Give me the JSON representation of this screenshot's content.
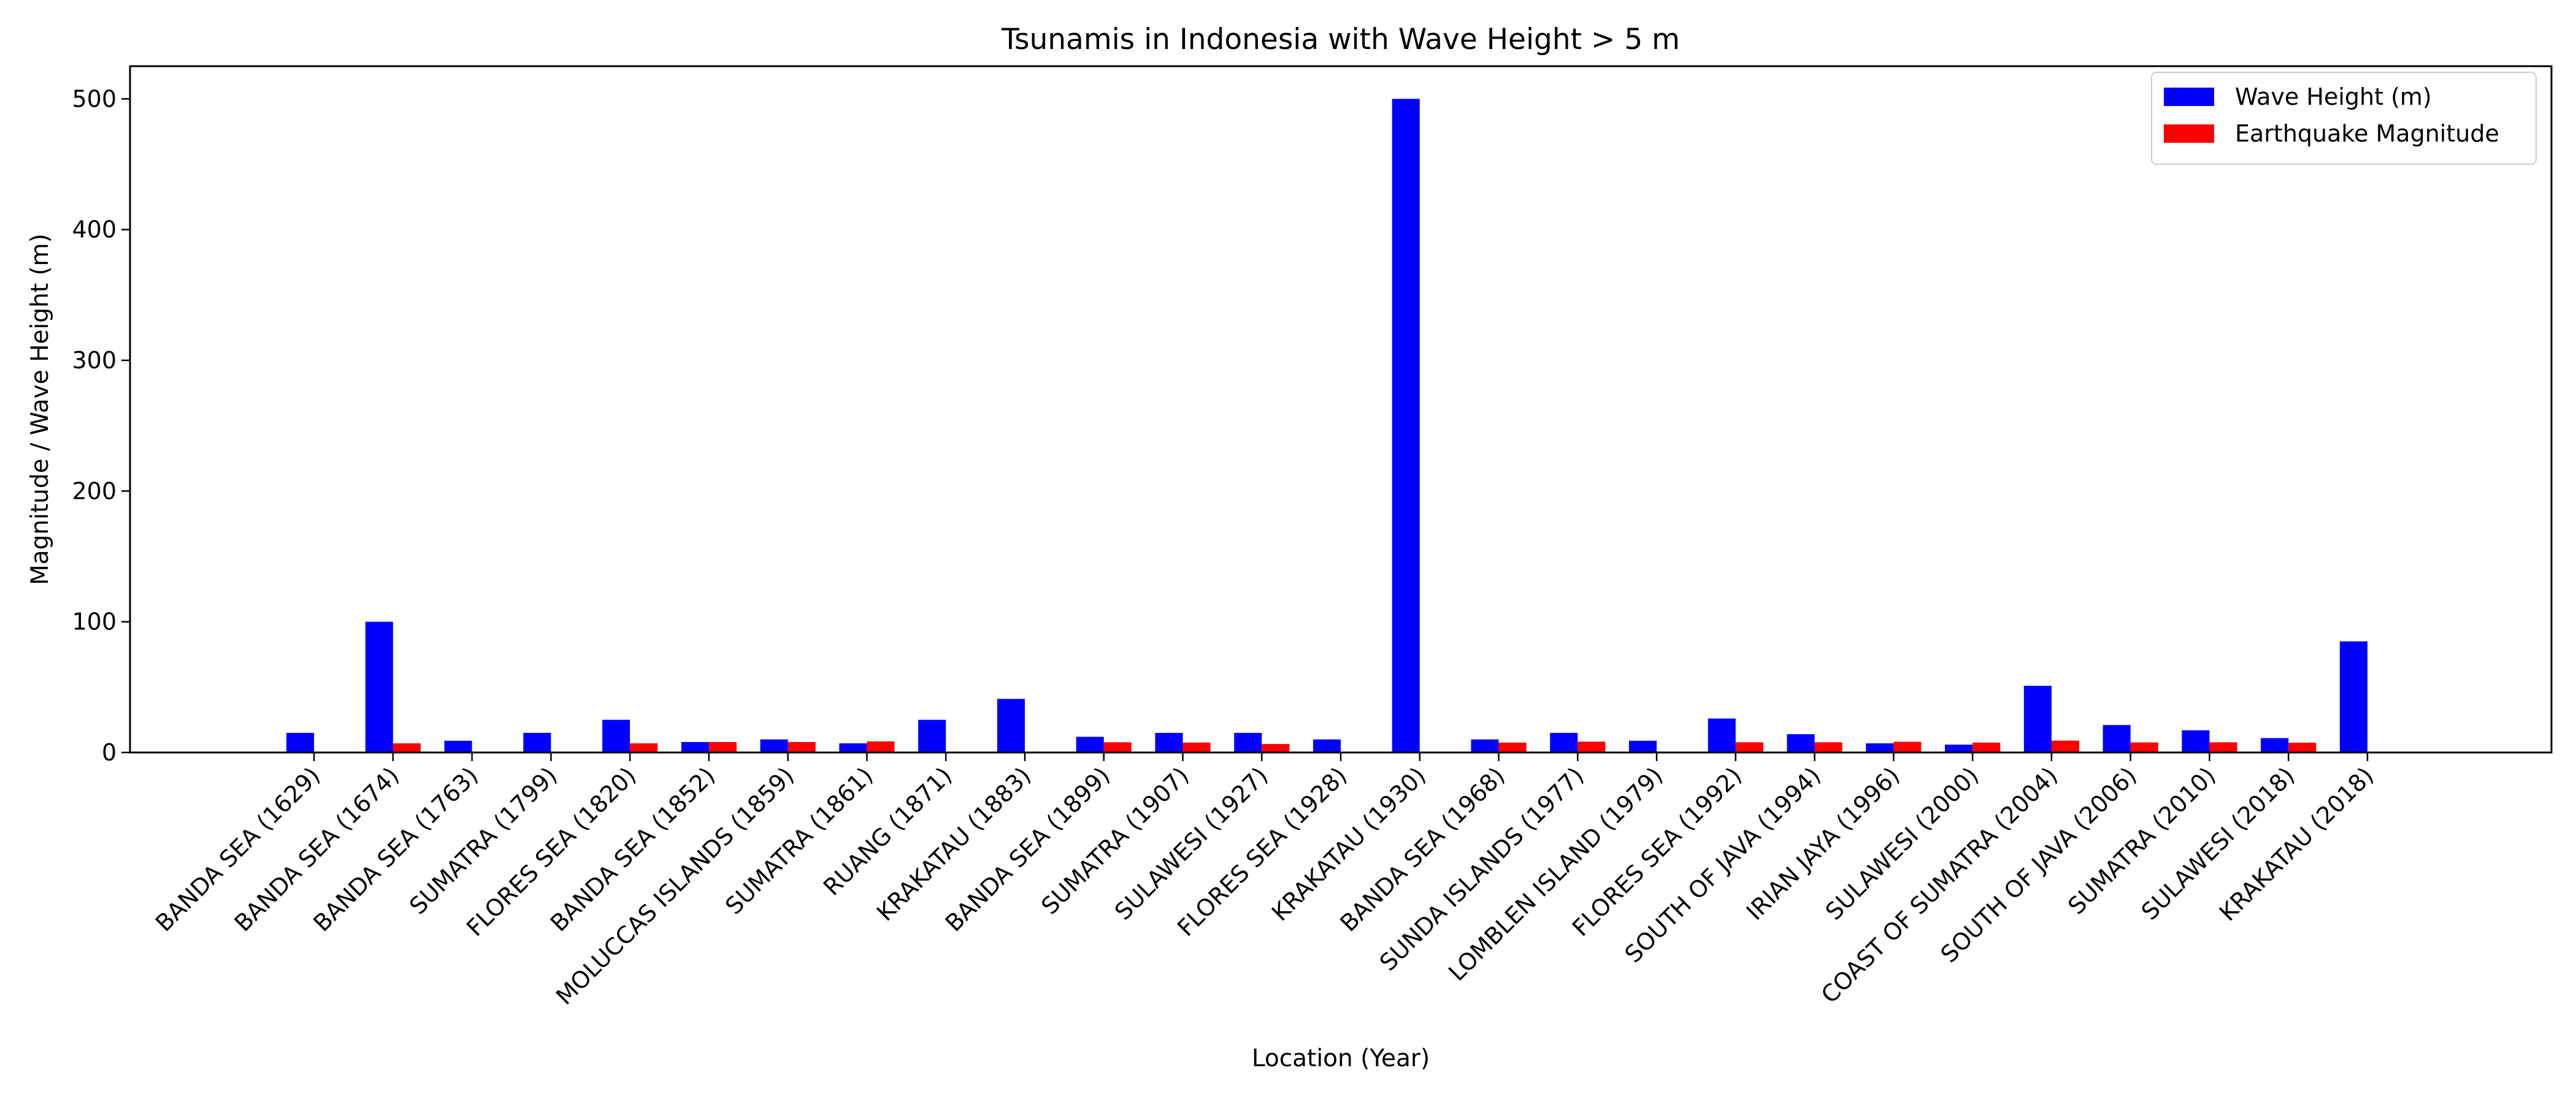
{
  "chart_data": {
    "type": "bar",
    "title": "Tsunamis in Indonesia with Wave Height > 5 m",
    "xlabel": "Location (Year)",
    "ylabel": "Magnitude / Wave Height (m)",
    "ylim": [
      0,
      525
    ],
    "yticks": [
      0,
      100,
      200,
      300,
      400,
      500
    ],
    "grid": false,
    "legend_position": "top-right",
    "categories": [
      "BANDA SEA (1629)",
      "BANDA SEA (1674)",
      "BANDA SEA (1763)",
      "SUMATRA (1799)",
      "FLORES SEA (1820)",
      "BANDA SEA (1852)",
      "MOLUCCAS ISLANDS (1859)",
      "SUMATRA (1861)",
      "RUANG (1871)",
      "KRAKATAU (1883)",
      "BANDA SEA (1899)",
      "SUMATRA (1907)",
      "SULAWESI (1927)",
      "FLORES SEA (1928)",
      "KRAKATAU (1930)",
      "BANDA SEA (1968)",
      "SUNDA ISLANDS (1977)",
      "LOMBLEN ISLAND  (1979)",
      "FLORES SEA (1992)",
      "SOUTH OF JAVA (1994)",
      "IRIAN JAYA (1996)",
      "SULAWESI (2000)",
      "COAST OF SUMATRA (2004)",
      "SOUTH OF JAVA (2006)",
      "SUMATRA (2010)",
      "SULAWESI (2018)",
      "KRAKATAU (2018)"
    ],
    "series": [
      {
        "name": "Wave Height (m)",
        "color": "#0000ff",
        "values": [
          15,
          100,
          9,
          15,
          25,
          8,
          10,
          7,
          25,
          41,
          12,
          15,
          15,
          10,
          500,
          10,
          15,
          9,
          26,
          14,
          7,
          6,
          51,
          21,
          17,
          11,
          85
        ]
      },
      {
        "name": "Earthquake Magnitude",
        "color": "#ff0000",
        "values": [
          0,
          7,
          0,
          0,
          7,
          8,
          8,
          8.5,
          0,
          0,
          7.8,
          7.6,
          6.5,
          0,
          0,
          7.6,
          8.3,
          0,
          7.8,
          7.8,
          8.2,
          7.6,
          9.1,
          7.7,
          7.8,
          7.5,
          0
        ]
      }
    ]
  }
}
